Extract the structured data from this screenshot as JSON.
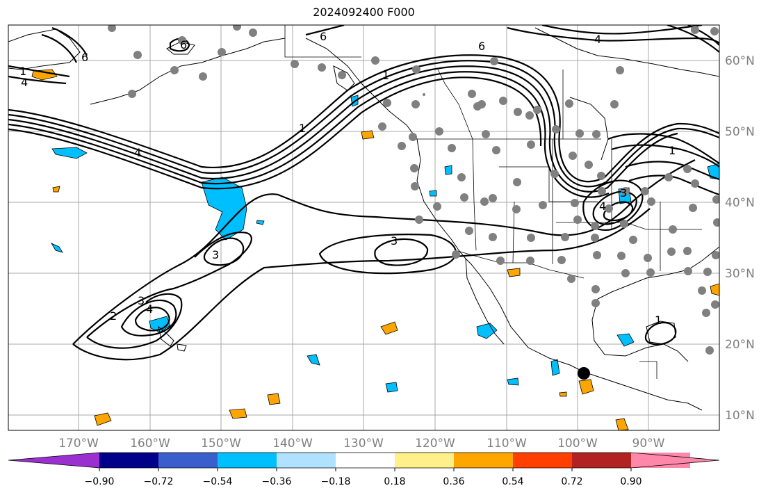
{
  "title": "2024092400 F000",
  "lon_labels": [
    "170°W",
    "160°W",
    "150°W",
    "140°W",
    "130°W",
    "120°W",
    "110°W",
    "100°W",
    "90°W"
  ],
  "lat_labels": [
    "60°N",
    "50°N",
    "40°N",
    "30°N",
    "20°N",
    "10°N"
  ],
  "colorbar": {
    "ticks": [
      "−0.90",
      "−0.72",
      "−0.54",
      "−0.36",
      "−0.18",
      "0.18",
      "0.36",
      "0.54",
      "0.72",
      "0.90"
    ],
    "colors": [
      "#9b30d0",
      "#00008b",
      "#3a5fcd",
      "#00bfff",
      "#b0e2ff",
      "#ffffff",
      "#fff08a",
      "#ffa500",
      "#ff4000",
      "#b22222",
      "#ff88aa"
    ]
  },
  "contour_labels": [
    "1",
    "4",
    "6",
    "6",
    "6",
    "6",
    "1",
    "1",
    "4",
    "3",
    "3",
    "2",
    "3",
    "4",
    "3",
    "4",
    "1",
    "1",
    "4"
  ],
  "marker": {
    "name": "black-dot-marker",
    "color": "#000000"
  },
  "station_color": "#808080"
}
